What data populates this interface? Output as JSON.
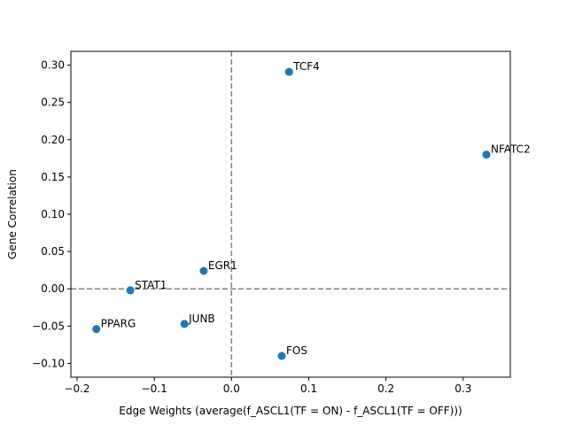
{
  "chart_data": {
    "type": "scatter",
    "title": "",
    "xlabel": "Edge Weights (average(f_ASCL1(TF = ON) - f_ASCL1(TF = OFF)))",
    "ylabel": "Gene Correlation",
    "xlim": [
      -0.208,
      0.361
    ],
    "ylim": [
      -0.1185,
      0.3185
    ],
    "xticks": [
      -0.2,
      -0.1,
      0.0,
      0.1,
      0.2,
      0.3
    ],
    "xtick_labels": [
      "−0.2",
      "−0.1",
      "0.0",
      "0.1",
      "0.2",
      "0.3"
    ],
    "yticks": [
      -0.1,
      -0.05,
      0.0,
      0.05,
      0.1,
      0.15,
      0.2,
      0.25,
      0.3
    ],
    "ytick_labels": [
      "−0.10",
      "−0.05",
      "0.00",
      "0.05",
      "0.10",
      "0.15",
      "0.20",
      "0.25",
      "0.30"
    ],
    "reference_lines": {
      "x": 0,
      "y": 0,
      "style": "dashed",
      "color": "#808080"
    },
    "grid": false,
    "marker_color": "#1f77b4",
    "points": [
      {
        "label": "TCF4",
        "x": 0.0745,
        "y": 0.291
      },
      {
        "label": "NFATC2",
        "x": 0.33,
        "y": 0.18
      },
      {
        "label": "EGR1",
        "x": -0.036,
        "y": 0.024
      },
      {
        "label": "STAT1",
        "x": -0.131,
        "y": -0.002
      },
      {
        "label": "JUNB",
        "x": -0.061,
        "y": -0.047
      },
      {
        "label": "PPARG",
        "x": -0.175,
        "y": -0.054
      },
      {
        "label": "FOS",
        "x": 0.065,
        "y": -0.09
      }
    ]
  }
}
